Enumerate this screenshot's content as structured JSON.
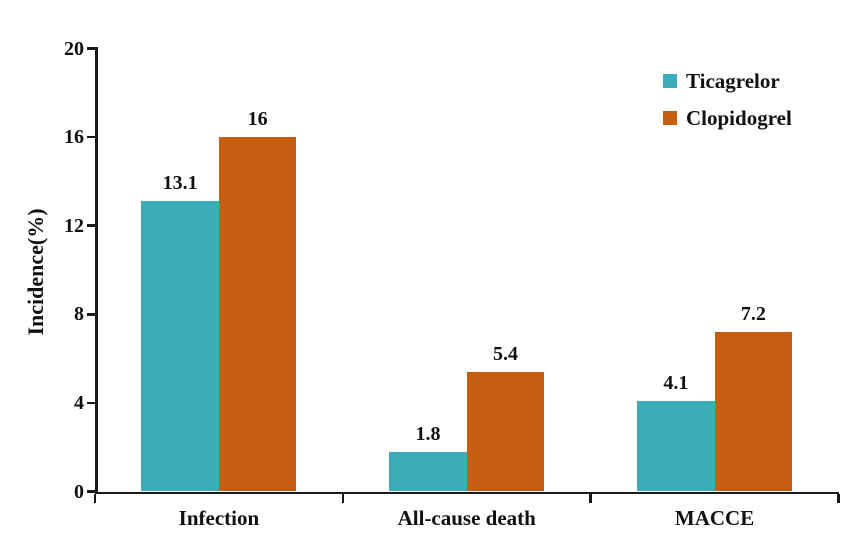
{
  "chart_data": {
    "type": "bar",
    "title": "",
    "xlabel": "",
    "ylabel": "Incidence(%)",
    "ylim": [
      0,
      20
    ],
    "yticks": [
      "0",
      "4",
      "8",
      "12",
      "16",
      "20"
    ],
    "categories": [
      "Infection",
      "All-cause death",
      "MACCE"
    ],
    "series": [
      {
        "name": "Ticagrelor",
        "color": "#3CADB8",
        "values": [
          13.1,
          1.8,
          4.1
        ],
        "labels": [
          "13.1",
          "1.8",
          "4.1"
        ]
      },
      {
        "name": "Clopidogrel",
        "color": "#C55E11",
        "values": [
          16,
          5.4,
          7.2
        ],
        "labels": [
          "16",
          "5.4",
          "7.2"
        ]
      }
    ],
    "grid": false,
    "legend_position": "top-right",
    "axis_color": "#1a1a1a",
    "text_color": "#111111",
    "background_color": "#ffffff"
  }
}
